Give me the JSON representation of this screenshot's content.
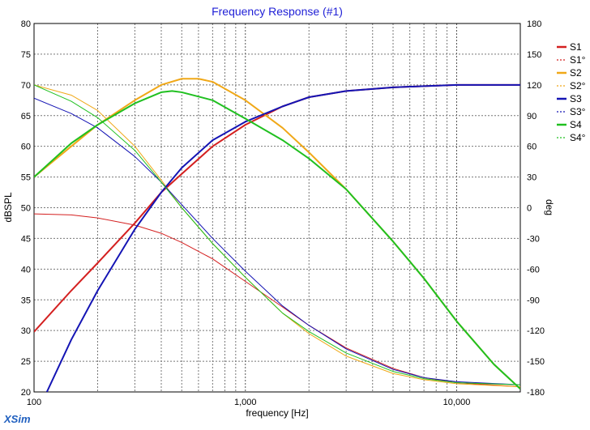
{
  "window": {
    "brand": "XSim"
  },
  "chart_data": {
    "type": "line",
    "title": "Frequency Response (#1)",
    "xlabel": "frequency [Hz]",
    "ylabel": "dBSPL",
    "y2label": "deg",
    "xscale": "log",
    "xlim": [
      100,
      20000
    ],
    "ylim": [
      20,
      80
    ],
    "y2lim": [
      -180,
      180
    ],
    "grid": true,
    "legend_position": "right",
    "x_ticks": [
      {
        "value": 100,
        "label": "100"
      },
      {
        "value": 1000,
        "label": "1,000"
      },
      {
        "value": 10000,
        "label": "10,000"
      }
    ],
    "y_ticks": [
      "20",
      "25",
      "30",
      "35",
      "40",
      "45",
      "50",
      "55",
      "60",
      "65",
      "70",
      "75",
      "80"
    ],
    "y2_ticks": [
      "-180",
      "-150",
      "-120",
      "-90",
      "-60",
      "-30",
      "0",
      "30",
      "60",
      "90",
      "120",
      "150",
      "180"
    ],
    "series": [
      {
        "name": "S1",
        "axis": "left",
        "color": "#d42020",
        "dash": "solid",
        "x": [
          100,
          150,
          200,
          300,
          400,
          500,
          700,
          1000,
          1500,
          2000,
          3000,
          5000,
          7000,
          10000,
          20000
        ],
        "y": [
          29.8,
          36.5,
          41.0,
          47.5,
          52.5,
          55.5,
          60.0,
          63.5,
          66.5,
          68.0,
          69.0,
          69.6,
          69.8,
          70.0,
          70.0
        ]
      },
      {
        "name": "S1°",
        "axis": "right",
        "color": "#d42020",
        "dash": "dashed",
        "x": [
          100,
          150,
          200,
          300,
          400,
          500,
          700,
          1000,
          1500,
          2000,
          3000,
          5000,
          7000,
          10000,
          20000
        ],
        "y": [
          -6,
          -7,
          -10,
          -17,
          -25,
          -34,
          -50,
          -72,
          -97,
          -115,
          -137,
          -157,
          -166,
          -171,
          -175
        ]
      },
      {
        "name": "S2",
        "axis": "left",
        "color": "#f0a818",
        "dash": "solid",
        "x": [
          100,
          150,
          200,
          300,
          400,
          500,
          600,
          700,
          1000,
          1500,
          2000,
          3000,
          5000,
          7000,
          10000,
          15000,
          20000
        ],
        "y": [
          55.0,
          60.0,
          63.5,
          67.5,
          70.0,
          71.0,
          71.0,
          70.5,
          67.5,
          63.0,
          59.0,
          53.0,
          44.5,
          38.5,
          31.5,
          24.5,
          20.5
        ]
      },
      {
        "name": "S2°",
        "axis": "right",
        "color": "#f0a818",
        "dash": "dashed",
        "x": [
          100,
          150,
          200,
          300,
          400,
          500,
          700,
          1000,
          1500,
          2000,
          3000,
          5000,
          7000,
          10000,
          20000
        ],
        "y": [
          120,
          110,
          95,
          60,
          27,
          0,
          -35,
          -68,
          -103,
          -123,
          -145,
          -162,
          -168,
          -172,
          -175
        ]
      },
      {
        "name": "S3",
        "axis": "left",
        "color": "#1414b4",
        "dash": "solid",
        "x": [
          115,
          150,
          200,
          300,
          400,
          500,
          700,
          1000,
          1500,
          2000,
          3000,
          5000,
          7000,
          10000,
          20000
        ],
        "y": [
          20.0,
          28.5,
          36.5,
          46.5,
          52.5,
          56.5,
          61.0,
          64.0,
          66.5,
          68.0,
          69.0,
          69.6,
          69.8,
          70.0,
          70.0
        ]
      },
      {
        "name": "S3°",
        "axis": "right",
        "color": "#1414b4",
        "dash": "dashed",
        "x": [
          100,
          150,
          200,
          300,
          400,
          500,
          700,
          1000,
          1500,
          2000,
          3000,
          5000,
          7000,
          10000,
          20000
        ],
        "y": [
          107,
          92,
          78,
          50,
          25,
          3,
          -30,
          -62,
          -96,
          -115,
          -138,
          -158,
          -166,
          -170,
          -173
        ]
      },
      {
        "name": "S4",
        "axis": "left",
        "color": "#20c020",
        "dash": "solid",
        "x": [
          100,
          150,
          200,
          300,
          400,
          450,
          500,
          700,
          1000,
          1500,
          2000,
          3000,
          5000,
          7000,
          10000,
          15000,
          20000
        ],
        "y": [
          55.0,
          60.5,
          63.5,
          67.0,
          68.8,
          69.0,
          68.8,
          67.5,
          64.5,
          61.0,
          58.0,
          53.0,
          44.5,
          38.5,
          31.5,
          24.5,
          20.5
        ]
      },
      {
        "name": "S4°",
        "axis": "right",
        "color": "#20c020",
        "dash": "dashed",
        "x": [
          100,
          150,
          200,
          300,
          400,
          500,
          700,
          1000,
          1500,
          2000,
          3000,
          5000,
          7000,
          10000,
          20000
        ],
        "y": [
          120,
          104,
          88,
          56,
          25,
          0,
          -35,
          -68,
          -103,
          -121,
          -142,
          -160,
          -167,
          -171,
          -173
        ]
      }
    ]
  }
}
